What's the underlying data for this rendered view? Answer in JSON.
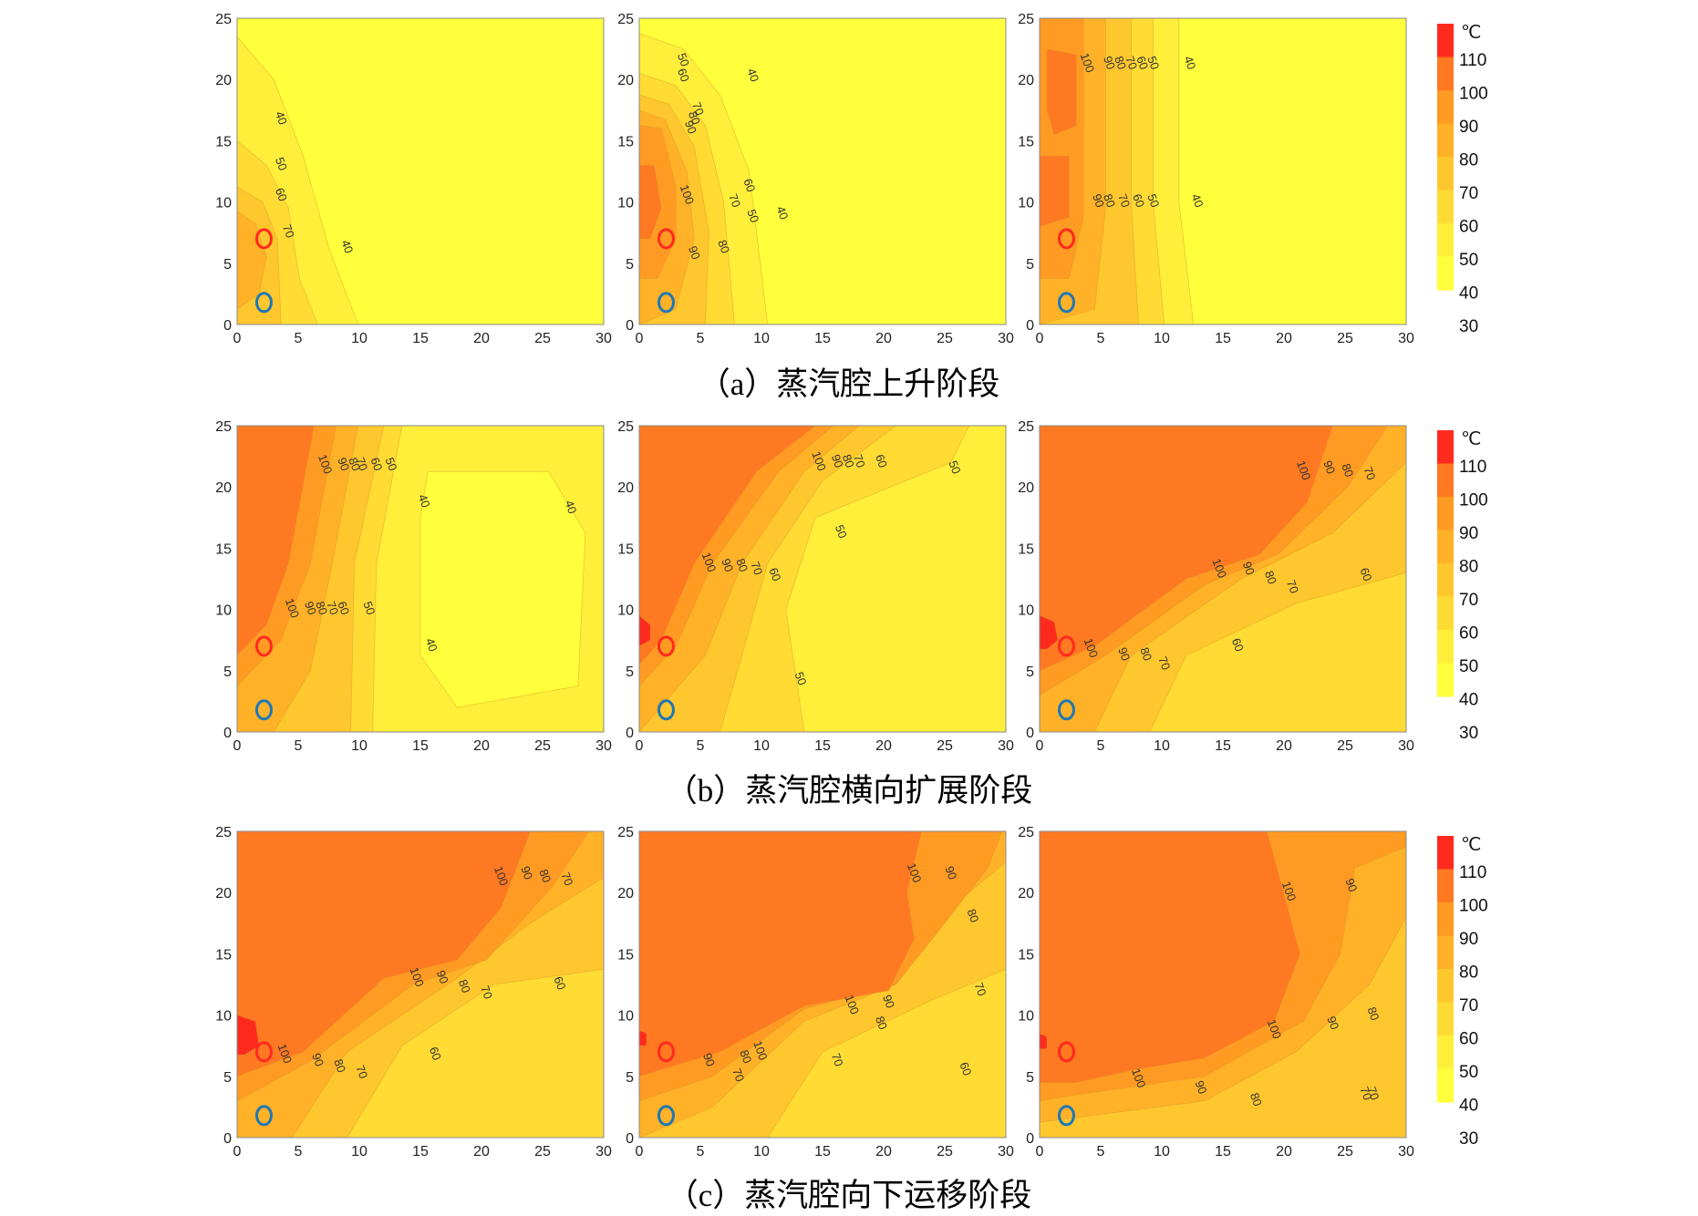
{
  "unit": "℃",
  "colors": [
    "#ffff3c",
    "#ffef3a",
    "#ffdb34",
    "#ffc72e",
    "#ffb127",
    "#ff9a22",
    "#ff7822",
    "#ff2a1e"
  ],
  "rows": [
    {
      "caption": "（a）蒸汽腔上升阶段",
      "legend_levels": [
        "110",
        "100",
        "90",
        "80",
        "70",
        "60",
        "50",
        "40",
        "30"
      ]
    },
    {
      "caption": "（b）蒸汽腔横向扩展阶段",
      "legend_levels": [
        "110",
        "100",
        "90",
        "80",
        "70",
        "60",
        "50",
        "40",
        "30"
      ]
    },
    {
      "caption": "（c）蒸汽腔向下运移阶段",
      "legend_levels": [
        "110",
        "100",
        "90",
        "80",
        "70",
        "60",
        "50",
        "40",
        "30"
      ]
    }
  ],
  "chart_data": {
    "type": "heatmap",
    "xlim": [
      0,
      30
    ],
    "ylim": [
      0,
      25
    ],
    "x_ticks": [
      "0",
      "5",
      "10",
      "15",
      "20",
      "25",
      "30"
    ],
    "y_ticks": [
      "0",
      "5",
      "10",
      "15",
      "20",
      "25"
    ],
    "levels": [
      30,
      40,
      50,
      60,
      70,
      80,
      90,
      100,
      110
    ],
    "markers": [
      {
        "name": "injector",
        "color": "#ff2a1e",
        "x": 2.2,
        "y": 7.0
      },
      {
        "name": "producer",
        "color": "#1f78b4",
        "x": 2.2,
        "y": 1.8
      }
    ],
    "panels": [
      {
        "row": 0,
        "col": 0,
        "contour_labels": [
          "40",
          "50",
          "60",
          "70",
          "40"
        ]
      },
      {
        "row": 0,
        "col": 1,
        "contour_labels": [
          "50",
          "60",
          "40",
          "70",
          "80",
          "90",
          "100",
          "90",
          "80",
          "70",
          "60",
          "50",
          "40"
        ]
      },
      {
        "row": 0,
        "col": 2,
        "contour_labels": [
          "100",
          "90",
          "80",
          "70",
          "60",
          "50",
          "40",
          "90",
          "80",
          "70",
          "60",
          "50",
          "40"
        ]
      },
      {
        "row": 1,
        "col": 0,
        "contour_labels": [
          "100",
          "90",
          "80",
          "70",
          "60",
          "50",
          "40",
          "40",
          "100",
          "90",
          "80",
          "70",
          "60",
          "50",
          "40"
        ]
      },
      {
        "row": 1,
        "col": 1,
        "contour_labels": [
          "100",
          "90",
          "80",
          "70",
          "60",
          "50",
          "100",
          "90",
          "80",
          "70",
          "60",
          "50",
          "50"
        ]
      },
      {
        "row": 1,
        "col": 2,
        "contour_labels": [
          "100",
          "90",
          "80",
          "70",
          "100",
          "90",
          "80",
          "70",
          "60",
          "100",
          "90",
          "80",
          "70",
          "60"
        ]
      },
      {
        "row": 2,
        "col": 0,
        "contour_labels": [
          "100",
          "90",
          "80",
          "70",
          "100",
          "90",
          "80",
          "70",
          "60",
          "100",
          "90",
          "80",
          "70",
          "60"
        ]
      },
      {
        "row": 2,
        "col": 1,
        "contour_labels": [
          "100",
          "90",
          "80",
          "70",
          "100",
          "90",
          "80",
          "70",
          "100",
          "90",
          "80",
          "70",
          "60"
        ]
      },
      {
        "row": 2,
        "col": 2,
        "contour_labels": [
          "100",
          "90",
          "100",
          "90",
          "80",
          "70",
          "100",
          "90",
          "80",
          "70"
        ]
      }
    ]
  }
}
